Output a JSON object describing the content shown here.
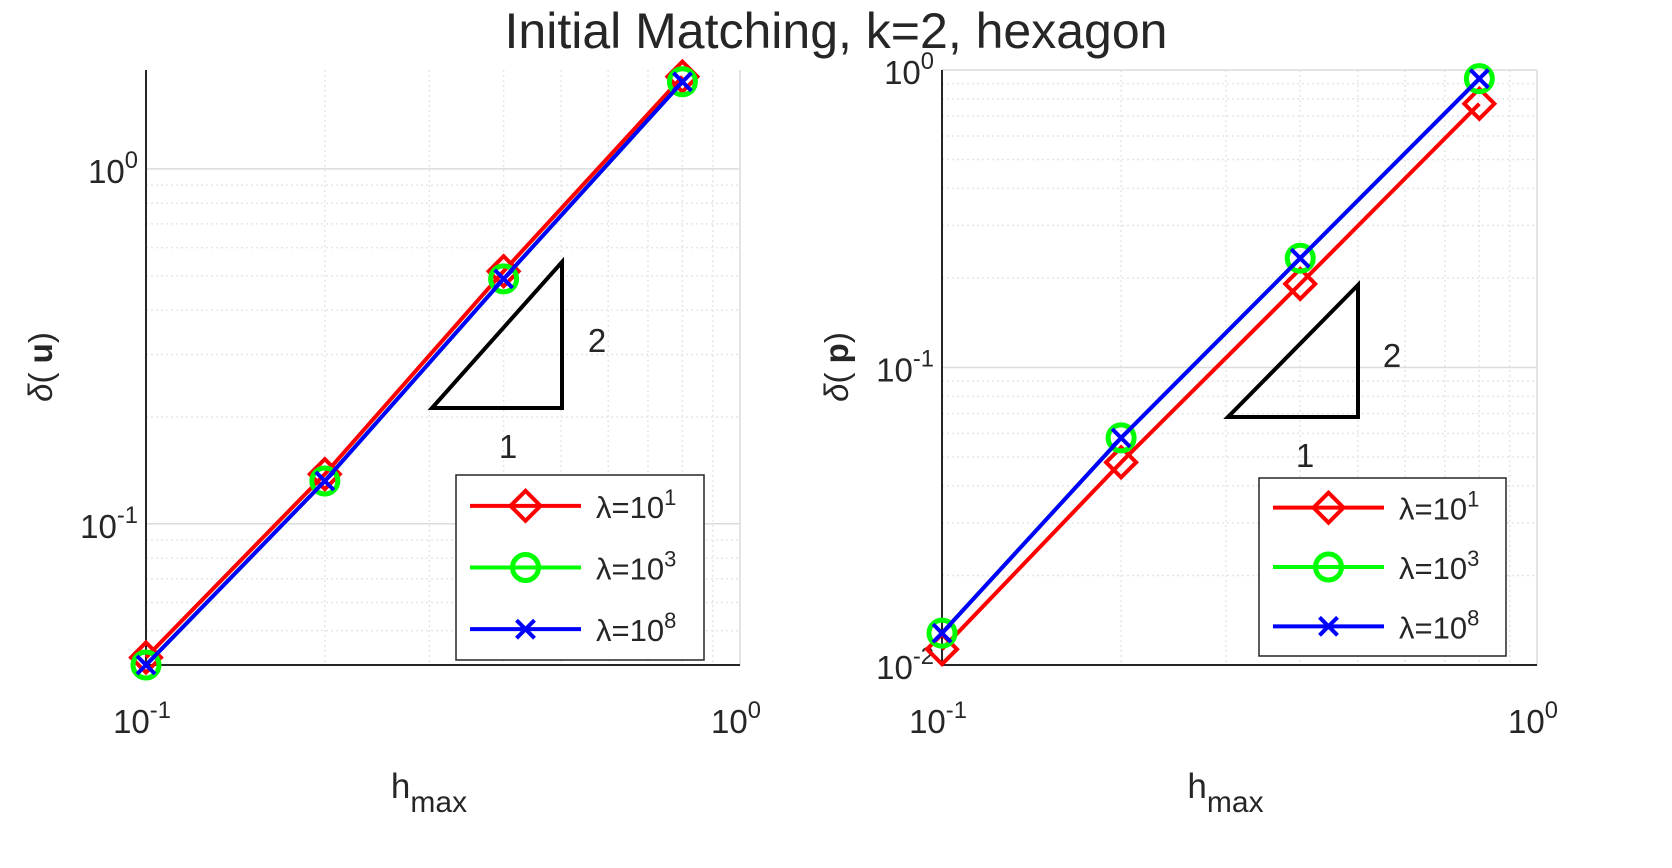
{
  "figure": {
    "title": "Initial Matching, k=2, hexagon"
  },
  "chart_data": [
    {
      "type": "line",
      "xlabel": {
        "base": "h",
        "sub": "max"
      },
      "ylabel": {
        "pre": "δ(",
        "bold": "u",
        "post": ")"
      },
      "xscale": "log",
      "yscale": "log",
      "xlim": [
        0.1,
        1.0
      ],
      "ylim": [
        0.04,
        1.9
      ],
      "xticks": [
        {
          "mant": "10",
          "exp": "-1"
        },
        {
          "mant": "10",
          "exp": "0"
        }
      ],
      "yticks": [
        {
          "v": 0.1,
          "mant": "10",
          "exp": "-1"
        },
        {
          "v": 1.0,
          "mant": "10",
          "exp": "0"
        }
      ],
      "grid": true,
      "legend_position": "bottom-right",
      "slope_triangle": {
        "rise_label": "2",
        "run_label": "1"
      },
      "series": [
        {
          "name": "λ=10",
          "exp": "1",
          "color": "#ff0000",
          "marker": "diamond",
          "x": [
            0.1,
            0.2,
            0.4,
            0.8
          ],
          "y": [
            0.042,
            0.138,
            0.515,
            1.82
          ]
        },
        {
          "name": "λ=10",
          "exp": "3",
          "color": "#00ff00",
          "marker": "circle",
          "x": [
            0.1,
            0.2,
            0.4,
            0.8
          ],
          "y": [
            0.04,
            0.132,
            0.49,
            1.76
          ]
        },
        {
          "name": "λ=10",
          "exp": "8",
          "color": "#0000ff",
          "marker": "x",
          "x": [
            0.1,
            0.2,
            0.4,
            0.8
          ],
          "y": [
            0.04,
            0.132,
            0.49,
            1.76
          ]
        }
      ]
    },
    {
      "type": "line",
      "xlabel": {
        "base": "h",
        "sub": "max"
      },
      "ylabel": {
        "pre": "δ(",
        "bold": "p",
        "post": ")"
      },
      "xscale": "log",
      "yscale": "log",
      "xlim": [
        0.1,
        1.0
      ],
      "ylim": [
        0.01,
        1.0
      ],
      "xticks": [
        {
          "mant": "10",
          "exp": "-1"
        },
        {
          "mant": "10",
          "exp": "0"
        }
      ],
      "yticks": [
        {
          "v": 0.01,
          "mant": "10",
          "exp": "-2"
        },
        {
          "v": 0.1,
          "mant": "10",
          "exp": "-1"
        },
        {
          "v": 1.0,
          "mant": "10",
          "exp": "0"
        }
      ],
      "grid": true,
      "legend_position": "bottom-right",
      "slope_triangle": {
        "rise_label": "2",
        "run_label": "1"
      },
      "series": [
        {
          "name": "λ=10",
          "exp": "1",
          "color": "#ff0000",
          "marker": "diamond",
          "x": [
            0.1,
            0.2,
            0.4,
            0.8
          ],
          "y": [
            0.0113,
            0.048,
            0.191,
            0.77
          ]
        },
        {
          "name": "λ=10",
          "exp": "3",
          "color": "#00ff00",
          "marker": "circle",
          "x": [
            0.1,
            0.2,
            0.4,
            0.8
          ],
          "y": [
            0.0128,
            0.058,
            0.233,
            0.935
          ]
        },
        {
          "name": "λ=10",
          "exp": "8",
          "color": "#0000ff",
          "marker": "x",
          "x": [
            0.1,
            0.2,
            0.4,
            0.8
          ],
          "y": [
            0.0128,
            0.058,
            0.233,
            0.935
          ]
        }
      ]
    }
  ]
}
